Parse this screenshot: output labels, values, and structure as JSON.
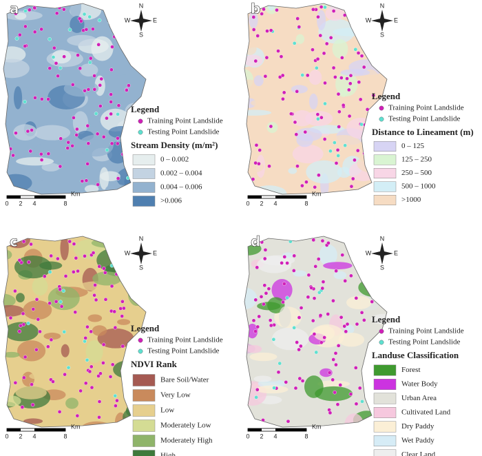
{
  "panels": [
    {
      "letter": "a",
      "legend_title": "Legend",
      "points": [
        {
          "label": "Training Point Landslide",
          "color": "#d020b8"
        },
        {
          "label": "Testing Point Landslide",
          "color": "#5fe0d0"
        }
      ],
      "layer_title": "Stream Density (m/m²)",
      "classes": [
        {
          "label": "0 – 0.002",
          "color": "#e6eeee"
        },
        {
          "label": "0.002 – 0.004",
          "color": "#c3d3e2"
        },
        {
          "label": "0.004 – 0.006",
          "color": "#93b2cf"
        },
        {
          "label": ">0.006",
          "color": "#4f7fb0"
        }
      ],
      "scale": [
        "0",
        "2",
        "4",
        "8"
      ],
      "unit": "Km",
      "compass": [
        "N",
        "E",
        "S",
        "W"
      ]
    },
    {
      "letter": "b",
      "legend_title": "Legend",
      "points": [
        {
          "label": "Training Point Landslide",
          "color": "#d020b8"
        },
        {
          "label": "Testing Point Landslide",
          "color": "#5fe0d0"
        }
      ],
      "layer_title": "Distance to Lineament (m)",
      "classes": [
        {
          "label": "0 – 125",
          "color": "#d7d4f4"
        },
        {
          "label": "125 – 250",
          "color": "#d9f4d2"
        },
        {
          "label": "250 – 500",
          "color": "#f8d6e6"
        },
        {
          "label": "500 – 1000",
          "color": "#d3eef6"
        },
        {
          "label": ">1000",
          "color": "#f6dcc3"
        }
      ],
      "scale": [
        "0",
        "2",
        "4",
        "8"
      ],
      "unit": "Km",
      "compass": [
        "N",
        "E",
        "S",
        "W"
      ]
    },
    {
      "letter": "c",
      "legend_title": "Legend",
      "points": [
        {
          "label": "Training Point Landslide",
          "color": "#d020b8"
        },
        {
          "label": "Testing Point Landslide",
          "color": "#5fe0d0"
        }
      ],
      "layer_title": "NDVI Rank",
      "classes": [
        {
          "label": "Bare Soil/Water",
          "color": "#a55a52"
        },
        {
          "label": "Very Low",
          "color": "#c98a5c"
        },
        {
          "label": "Low",
          "color": "#e6cf8e"
        },
        {
          "label": "Moderately Low",
          "color": "#d4dc94"
        },
        {
          "label": "Moderately High",
          "color": "#8fb46a"
        },
        {
          "label": "High",
          "color": "#3f7a3c"
        }
      ],
      "scale": [
        "0",
        "2",
        "4",
        "8"
      ],
      "unit": "Km",
      "compass": [
        "N",
        "E",
        "S",
        "W"
      ]
    },
    {
      "letter": "d",
      "legend_title": "Legend",
      "points": [
        {
          "label": "Training Point Landslide",
          "color": "#d020b8"
        },
        {
          "label": "Testing Point Landslide",
          "color": "#5fe0d0"
        }
      ],
      "layer_title": "Landuse Classification",
      "classes": [
        {
          "label": "Forest",
          "color": "#3f9a2f"
        },
        {
          "label": "Water Body",
          "color": "#cc33e0"
        },
        {
          "label": "Urban Area",
          "color": "#e2e2da"
        },
        {
          "label": "Cultivated Land",
          "color": "#f6c8de"
        },
        {
          "label": "Dry Paddy",
          "color": "#fbefd6"
        },
        {
          "label": "Wet Paddy",
          "color": "#d6ecf6"
        },
        {
          "label": "Clear Land",
          "color": "#eeeeee"
        }
      ],
      "scale": [
        "0",
        "2",
        "4",
        "8"
      ],
      "unit": "Km",
      "compass": [
        "N",
        "E",
        "S",
        "W"
      ]
    }
  ]
}
